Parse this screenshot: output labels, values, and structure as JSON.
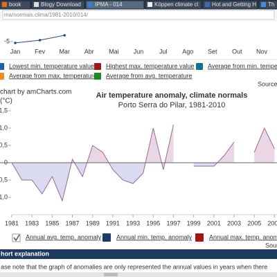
{
  "browser": {
    "tabs": [
      "book",
      "Blogy Download",
      "IPMA - 014",
      "Köppen climate cl",
      "Hot and Getting H",
      "Th"
    ],
    "active_tab": 2,
    "url": "ma/normais.clima/1981-2010/014/"
  },
  "upper_chart": {
    "type": "line",
    "categories": [
      "Jan",
      "Fev",
      "Mar",
      "Abr",
      "Mai",
      "Jun",
      "Jul",
      "Ago",
      "Set",
      "Out",
      "Nov"
    ],
    "values": [
      -5.2,
      -4.8,
      -4.1,
      null,
      null,
      null,
      null,
      null,
      null,
      null,
      null
    ],
    "color": "#2c4a75",
    "ylim": [
      -6,
      -3.5
    ],
    "yticks": [
      -5
    ]
  },
  "top_legend": [
    {
      "label": "Lowest min. temperature value",
      "color": "#1f5faa"
    },
    {
      "label": "Highest max. temperature value",
      "color": "#a01818"
    },
    {
      "label": "Average from min. tempe",
      "color": "#1c6d96"
    },
    {
      "label": "Average from max. temperature",
      "color": "#f08c1e"
    },
    {
      "label": "Average from avg. temperature",
      "color": "#1e8a1e"
    }
  ],
  "source_top": "Source",
  "credit": "chart by amCharts.com",
  "chart_data": {
    "type": "area",
    "title": "Air temperature anomaly, climate normals",
    "subtitle": "Porto Serra do Pilar, 1981-2010",
    "y_label": "(°C)",
    "x": [
      1981,
      1982,
      1983,
      1984,
      1985,
      1986,
      1987,
      1988,
      1989,
      1990,
      1991,
      1992,
      1993,
      1994,
      1995,
      1996,
      1997,
      1998,
      1999,
      2000,
      2001,
      2002,
      2003,
      2004,
      2005,
      2006,
      2007
    ],
    "series": [
      {
        "name": "Annual avg. temp. anomaly",
        "color": "#9a6b8a",
        "values": [
          0,
          -0.5,
          -0.5,
          -0.9,
          -0.4,
          -1.1,
          0.1,
          -0.4,
          0.5,
          0.3,
          -0.2,
          -0.5,
          -0.6,
          -0.3,
          1.0,
          -0.2,
          1.1,
          null,
          -0.1,
          -0.1,
          -0.1,
          0.2,
          0.6,
          null,
          0.3,
          1.0,
          0.4
        ]
      }
    ],
    "xlim": [
      1981,
      2008
    ],
    "xticks": [
      1981,
      1983,
      1985,
      1987,
      1989,
      1991,
      1993,
      1995,
      1997,
      1999,
      2001,
      2003,
      2005,
      2007
    ],
    "ylim": [
      -1.5,
      1.7
    ],
    "yticks": [
      {
        "value": -1,
        "label": "-1,0"
      },
      {
        "value": -0.5,
        "label": "-0,5"
      },
      0,
      {
        "value": 0.5,
        "label": "0,5"
      },
      {
        "value": 1,
        "label": "1,0"
      },
      {
        "value": 1.5,
        "label": "1,5"
      }
    ],
    "grid": false
  },
  "other_legend": [
    {
      "label": "Annual min. temp. anomaly",
      "color": "#1f3a66"
    },
    {
      "label": "Annual max. temp. anomaly",
      "color": "#a01818"
    }
  ],
  "source_bottom": "Sourc",
  "section_title": "hort explanation",
  "note": "ase note that the graph of anomalies are only represented the annual values in years when there"
}
